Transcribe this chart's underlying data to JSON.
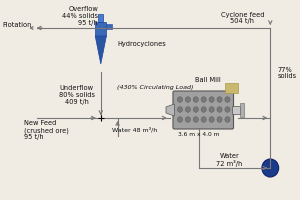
{
  "bg_color": "#f0ece4",
  "line_color": "#777777",
  "text_color": "#111111",
  "hydro_body_color": "#3a6ab5",
  "hydro_cone_color": "#2a55a0",
  "hydro_top_color": "#4a7acc",
  "mill_body_color": "#a0a0a0",
  "mill_dot_color": "#787878",
  "mill_inlet_color": "#b8b8b8",
  "mill_outlet_color": "#c8c8c8",
  "mill_gear_color": "#c8b870",
  "pump_color": "#1a3a8a",
  "flotation_label": "Flotation",
  "overflow_label": "Overflow\n44% solids\n95 t/h",
  "hydrocyclone_label": "Hydrocyclones",
  "underflow_label": "Underflow\n80% solids\n409 t/h",
  "circulating_label": "(430% Circulating Load)",
  "cyclone_feed_label": "Cyclone feed\n504 t/h",
  "ball_mill_label": "Ball Mill",
  "mill_size_label": "3.6 m x 4.0 m",
  "new_feed_label": "New Feed\n(crushed ore)\n95 t/h",
  "water1_label": "Water 48 m³/h",
  "water2_label": "Water\n72 m³/h",
  "solids_label": "77%\nsolids",
  "font_size": 5.2,
  "small_font_size": 4.8
}
